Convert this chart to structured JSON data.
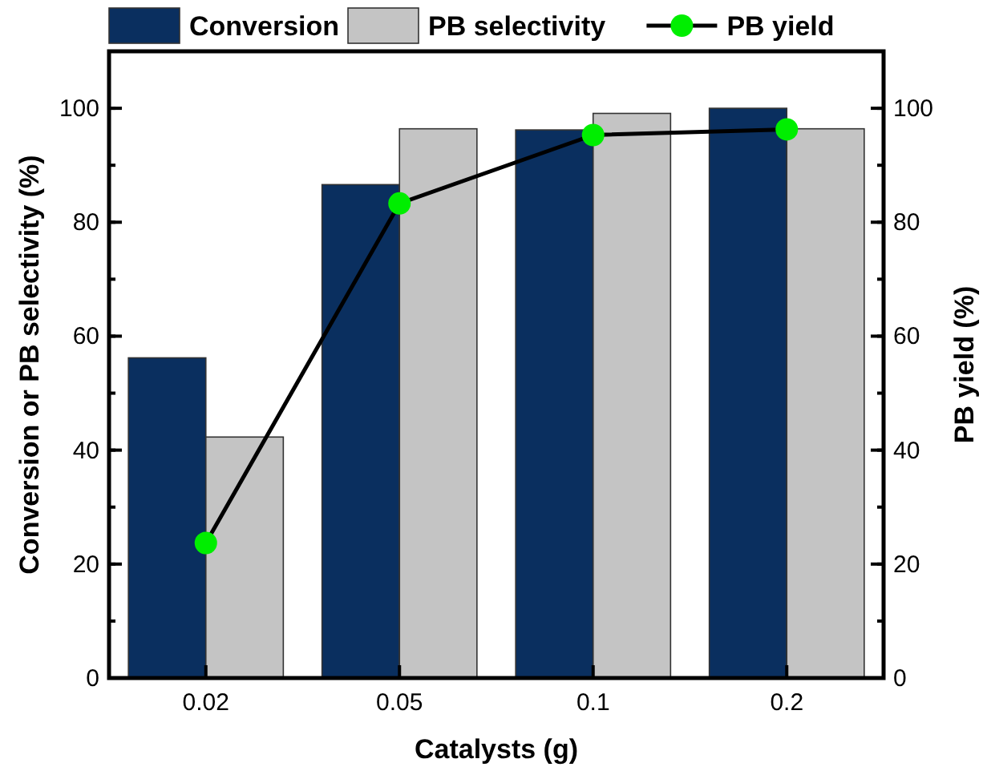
{
  "chart_data": {
    "type": "bar",
    "xlabel": "Catalysts (g)",
    "ylabel": "Conversion or PB selectivity (%)",
    "y2label": "PB yield (%)",
    "categories": [
      "0.02",
      "0.05",
      "0.1",
      "0.2"
    ],
    "series": [
      {
        "name": "Conversion",
        "color": "#0a2f5f",
        "values": [
          56.2,
          86.6,
          96.2,
          100
        ]
      },
      {
        "name": "PB selectivity",
        "color": "#c4c4c4",
        "values": [
          42.3,
          96.4,
          99.1,
          96.4
        ]
      },
      {
        "name": "PB yield",
        "type": "line",
        "axis": "y2",
        "color": "#00ee00",
        "values": [
          23.7,
          83.3,
          95.3,
          96.3
        ]
      }
    ],
    "ylim": [
      0,
      110
    ],
    "yticks": [
      0,
      20,
      40,
      60,
      80,
      100
    ],
    "y2lim": [
      0,
      110
    ],
    "y2ticks": [
      0,
      20,
      40,
      60,
      80,
      100
    ],
    "legend": "top",
    "marker": "circle",
    "grid": false
  }
}
